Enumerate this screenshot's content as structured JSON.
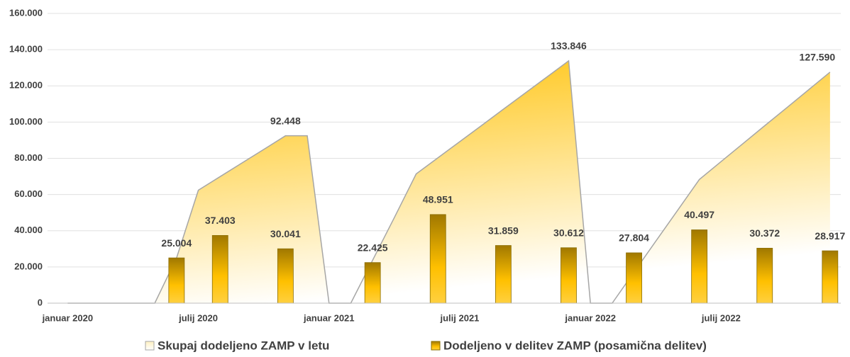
{
  "chart_data": {
    "type": "bar-area",
    "categories": [
      "januar 2020",
      null,
      null,
      null,
      null,
      null,
      "julij 2020",
      null,
      null,
      null,
      null,
      null,
      "januar 2021",
      null,
      null,
      null,
      null,
      null,
      "julij 2021",
      null,
      null,
      null,
      null,
      null,
      "januar 2022",
      null,
      null,
      null,
      null,
      null,
      "julij 2022",
      null,
      null,
      null,
      null,
      null
    ],
    "series": [
      {
        "name": "Skupaj dodeljeno ZAMP v letu",
        "type": "area",
        "color": "#ffc000",
        "values": [
          0,
          0,
          0,
          0,
          0,
          25004,
          62407,
          69900,
          77400,
          84900,
          92448,
          92448,
          0,
          0,
          23700,
          47300,
          71376,
          80300,
          89200,
          98100,
          107100,
          116000,
          124900,
          133846,
          0,
          0,
          17100,
          34200,
          51200,
          68301,
          78200,
          88100,
          98000,
          107800,
          117700,
          127590
        ],
        "value_labels": [
          null,
          null,
          null,
          null,
          null,
          null,
          null,
          null,
          null,
          null,
          "92.448",
          null,
          null,
          null,
          null,
          null,
          null,
          null,
          null,
          null,
          null,
          null,
          null,
          "133.846",
          null,
          null,
          null,
          null,
          null,
          null,
          null,
          null,
          null,
          null,
          null,
          "127.590"
        ]
      },
      {
        "name": "Dodeljeno v delitev ZAMP (posamična delitev)",
        "type": "bar",
        "color": "#d4a000",
        "values": [
          null,
          null,
          null,
          null,
          null,
          25004,
          null,
          37403,
          null,
          null,
          30041,
          null,
          null,
          null,
          22425,
          null,
          null,
          48951,
          null,
          null,
          31859,
          null,
          null,
          30612,
          null,
          null,
          27804,
          null,
          null,
          40497,
          null,
          null,
          30372,
          null,
          null,
          28917
        ],
        "value_labels": [
          null,
          null,
          null,
          null,
          null,
          "25.004",
          null,
          "37.403",
          null,
          null,
          "30.041",
          null,
          null,
          null,
          "22.425",
          null,
          null,
          "48.951",
          null,
          null,
          "31.859",
          null,
          null,
          "30.612",
          null,
          null,
          "27.804",
          null,
          null,
          "40.497",
          null,
          null,
          "30.372",
          null,
          null,
          "28.917"
        ]
      }
    ],
    "ylim": [
      0,
      160000
    ],
    "yticks": [
      0,
      {
        "value": 20000,
        "label": "20.000"
      },
      {
        "value": 40000,
        "label": "40.000"
      },
      {
        "value": 60000,
        "label": "60.000"
      },
      {
        "value": 80000,
        "label": "80.000"
      },
      {
        "value": 100000,
        "label": "100.000"
      },
      {
        "value": 120000,
        "label": "120.000"
      },
      {
        "value": 140000,
        "label": "140.000"
      },
      {
        "value": 160000,
        "label": "160.000"
      }
    ],
    "grid": true,
    "legend": "bottom"
  }
}
